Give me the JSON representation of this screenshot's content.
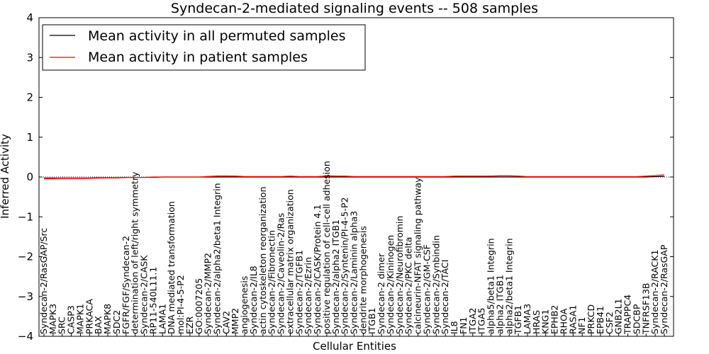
{
  "chart_data": {
    "type": "line",
    "title": "Syndecan-2-mediated signaling events -- 508 samples",
    "xlabel": "Cellular Entities",
    "ylabel": "Inferred Activity",
    "ylim": [
      -4,
      4
    ],
    "yticks": [
      "4",
      "3",
      "2",
      "1",
      "0",
      "−1",
      "−2",
      "−3",
      "−4"
    ],
    "legend_position": "top-left",
    "categories": [
      "Syndecan-2/RasGAP/Src",
      "MAPK3",
      "SRC",
      "CASP3",
      "MAPK1",
      "PRKACA",
      "BAX",
      "MAPK8",
      "SDC2",
      "FGFR/FGF/Syndecan-2",
      "determination of left/right symmetry",
      "Syndecan-2/CASK",
      "RP11-540L11.1",
      "LAMA1",
      "DNA mediated transformation",
      "mol:PI-4-5-P2",
      "EZR",
      "GO:0007205",
      "Syndecan-2/MMP2",
      "Syndecan-2/alpha2/beta1 Integrin",
      "CAV2",
      "MMP2",
      "angiogenesis",
      "Syndecan-2/IL8",
      "actin cytoskeleton reorganization",
      "Syndecan-2/Fibronectin",
      "Syndecan-2/Caveolin-2/Ras",
      "extracellular matrix organization",
      "Syndecan-2/TGFB1",
      "Syndecan-2/Ezrin",
      "Syndecan-2/CASK/Protein 4.1",
      "positive regulation of cell-cell adhesion",
      "Syndecan-2/alpha2 ITGB1",
      "Syndecan-2/Syntenin/PI-4-5-P2",
      "Syndecan-2/Laminin alpha3",
      "dendrite morphogenesis",
      "ITGB1",
      "Syndecan-2 dimer",
      "Syndecan-2/Kininogen",
      "Syndecan-2/Neurofibromin",
      "Syndecan-2/PKC delta",
      "calcineurin-NFAT signaling pathway",
      "Syndecan-2/GM-CSF",
      "Syndecan-2/Synbindin",
      "Syndecan-2/TACI",
      "IL8",
      "FN1",
      "ITGA2",
      "ITGA5",
      "alpha5/beta1 Integrin",
      "alpha2 ITGB1",
      "alpha2/beta1 Integrin",
      "TGFB1",
      "LAMA3",
      "HRAS",
      "KNG1",
      "EPHB2",
      "RHOA",
      "RASA1",
      "NF1",
      "PRKCD",
      "EPB41",
      "CSF2",
      "GNB2L1",
      "TRAPPC4",
      "SDCBP",
      "TNFRSF13B",
      "Syndecan-2/RACK1",
      "Syndecan-2/RasGAP"
    ],
    "series": [
      {
        "name": "Mean activity in all permuted samples",
        "color": "#000000",
        "values": [
          -0.03,
          -0.03,
          -0.03,
          -0.03,
          -0.03,
          -0.03,
          -0.02,
          -0.02,
          -0.02,
          -0.01,
          -0.01,
          -0.01,
          -0.01,
          0.0,
          0.0,
          0.0,
          0.0,
          0.0,
          0.0,
          0.0,
          0.0,
          0.0,
          0.0,
          0.0,
          0.0,
          0.0,
          0.0,
          0.0,
          0.0,
          0.0,
          0.0,
          0.0,
          0.0,
          0.0,
          0.0,
          0.0,
          0.0,
          0.0,
          0.0,
          0.0,
          0.0,
          0.0,
          0.0,
          0.0,
          0.0,
          0.0,
          0.0,
          0.0,
          0.0,
          0.0,
          0.0,
          0.0,
          0.0,
          0.0,
          0.0,
          0.0,
          0.0,
          0.0,
          0.0,
          0.0,
          0.0,
          0.0,
          0.0,
          0.0,
          0.0,
          0.0,
          0.0,
          0.01,
          0.01
        ]
      },
      {
        "name": "Mean activity in patient samples",
        "color": "#ff0000",
        "values": [
          -0.04,
          -0.04,
          -0.03,
          -0.03,
          -0.03,
          -0.03,
          -0.02,
          -0.02,
          -0.02,
          -0.01,
          -0.01,
          -0.01,
          0.0,
          0.0,
          0.0,
          0.0,
          0.0,
          0.0,
          0.01,
          0.02,
          0.02,
          0.02,
          0.01,
          0.01,
          0.01,
          0.01,
          0.01,
          0.02,
          0.01,
          0.01,
          0.01,
          0.02,
          0.02,
          0.02,
          0.01,
          0.01,
          0.01,
          0.01,
          0.01,
          0.01,
          0.01,
          0.01,
          0.01,
          0.01,
          0.01,
          0.02,
          0.02,
          0.02,
          0.02,
          0.02,
          0.03,
          0.03,
          0.02,
          0.01,
          0.01,
          0.01,
          0.01,
          0.01,
          0.01,
          0.01,
          0.01,
          0.01,
          0.01,
          0.01,
          0.01,
          0.01,
          0.02,
          0.03,
          0.05
        ],
        "band_half_width": [
          0.04,
          0.04,
          0.04,
          0.04,
          0.04,
          0.03,
          0.03,
          0.02,
          0.02,
          0.02,
          0.01,
          0.01,
          0.01,
          0.01,
          0.01,
          0.01,
          0.01,
          0.01,
          0.03,
          0.03,
          0.03,
          0.02,
          0.02,
          0.02,
          0.02,
          0.02,
          0.02,
          0.02,
          0.02,
          0.02,
          0.02,
          0.04,
          0.02,
          0.02,
          0.02,
          0.02,
          0.02,
          0.02,
          0.02,
          0.02,
          0.02,
          0.02,
          0.02,
          0.02,
          0.02,
          0.02,
          0.02,
          0.02,
          0.02,
          0.02,
          0.02,
          0.02,
          0.02,
          0.01,
          0.01,
          0.01,
          0.01,
          0.01,
          0.01,
          0.01,
          0.01,
          0.01,
          0.01,
          0.01,
          0.01,
          0.01,
          0.02,
          0.03,
          0.03
        ]
      }
    ]
  }
}
